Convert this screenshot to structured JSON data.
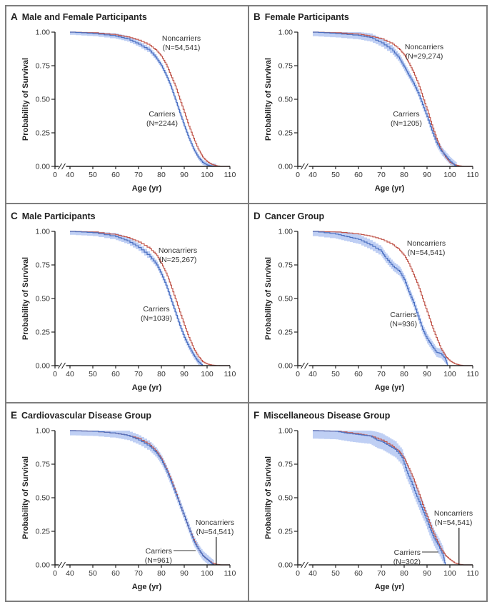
{
  "figure": {
    "colors": {
      "carriers_line": "#4a6fc0",
      "carriers_band": "#a9bff0",
      "noncarriers_line": "#c0554a",
      "axis": "#222222",
      "border": "#7d7d7d"
    }
  },
  "chart_data": [
    {
      "type": "line",
      "panel": "A",
      "title": "Male and Female Participants",
      "xlabel": "Age (yr)",
      "ylabel": "Probability of Survival",
      "xticks": [
        "0",
        "40",
        "50",
        "60",
        "70",
        "80",
        "90",
        "100",
        "110"
      ],
      "yticks": [
        "0.00",
        "0.25",
        "0.50",
        "0.75",
        "1.00"
      ],
      "xlim": [
        40,
        110
      ],
      "ylim": [
        0,
        1
      ],
      "x_axis_break": true,
      "annotations": {
        "noncarriers": [
          "Noncarriers",
          "(N=54,541)"
        ],
        "carriers": [
          "Carriers",
          "(N=2244)"
        ]
      },
      "series": [
        {
          "name": "Noncarriers",
          "x": [
            40,
            50,
            60,
            65,
            70,
            75,
            78,
            80,
            82,
            84,
            86,
            88,
            90,
            92,
            94,
            96,
            98,
            100,
            102,
            104,
            106,
            110
          ],
          "y": [
            1.0,
            0.995,
            0.98,
            0.965,
            0.94,
            0.9,
            0.86,
            0.82,
            0.76,
            0.68,
            0.6,
            0.5,
            0.4,
            0.3,
            0.21,
            0.13,
            0.07,
            0.035,
            0.015,
            0.005,
            0.0,
            0.0
          ]
        },
        {
          "name": "Carriers",
          "x": [
            40,
            50,
            60,
            65,
            70,
            75,
            78,
            80,
            82,
            84,
            86,
            88,
            90,
            92,
            94,
            96,
            98,
            100,
            102,
            104
          ],
          "y": [
            1.0,
            0.99,
            0.97,
            0.95,
            0.91,
            0.86,
            0.8,
            0.75,
            0.68,
            0.6,
            0.5,
            0.4,
            0.3,
            0.21,
            0.13,
            0.07,
            0.03,
            0.01,
            0.003,
            0.0
          ],
          "ci_halfwidth": 0.02
        }
      ]
    },
    {
      "type": "line",
      "panel": "B",
      "title": "Female Participants",
      "xlabel": "Age (yr)",
      "ylabel": "Probability of Survival",
      "xticks": [
        "0",
        "40",
        "50",
        "60",
        "70",
        "80",
        "90",
        "100",
        "110"
      ],
      "yticks": [
        "0.00",
        "0.25",
        "0.50",
        "0.75",
        "1.00"
      ],
      "xlim": [
        40,
        110
      ],
      "ylim": [
        0,
        1
      ],
      "x_axis_break": true,
      "annotations": {
        "noncarriers": [
          "Noncarriers",
          "(N=29,274)"
        ],
        "carriers": [
          "Carriers",
          "(N=1205)"
        ]
      },
      "series": [
        {
          "name": "Noncarriers",
          "x": [
            40,
            50,
            60,
            65,
            70,
            75,
            78,
            80,
            82,
            84,
            86,
            88,
            90,
            92,
            94,
            96,
            98,
            100,
            102,
            104,
            106,
            110
          ],
          "y": [
            1.0,
            0.995,
            0.985,
            0.97,
            0.95,
            0.91,
            0.87,
            0.83,
            0.77,
            0.7,
            0.62,
            0.52,
            0.42,
            0.31,
            0.21,
            0.13,
            0.07,
            0.03,
            0.012,
            0.004,
            0.0,
            0.0
          ]
        },
        {
          "name": "Carriers",
          "x": [
            40,
            50,
            60,
            65,
            70,
            75,
            78,
            80,
            82,
            84,
            86,
            88,
            90,
            92,
            94,
            96,
            98,
            100,
            102,
            103
          ],
          "y": [
            1.0,
            0.99,
            0.975,
            0.96,
            0.92,
            0.86,
            0.8,
            0.74,
            0.68,
            0.62,
            0.55,
            0.46,
            0.37,
            0.27,
            0.18,
            0.12,
            0.08,
            0.04,
            0.01,
            0.0
          ],
          "ci_halfwidth": 0.03
        }
      ]
    },
    {
      "type": "line",
      "panel": "C",
      "title": "Male Participants",
      "xlabel": "Age (yr)",
      "ylabel": "Probability of Survival",
      "xticks": [
        "0",
        "40",
        "50",
        "60",
        "70",
        "80",
        "90",
        "100",
        "110"
      ],
      "yticks": [
        "0.00",
        "0.25",
        "0.50",
        "0.75",
        "1.00"
      ],
      "xlim": [
        40,
        110
      ],
      "ylim": [
        0,
        1
      ],
      "x_axis_break": true,
      "annotations": {
        "noncarriers": [
          "Noncarriers",
          "(N=25,267)"
        ],
        "carriers": [
          "Carriers",
          "(N=1039)"
        ]
      },
      "series": [
        {
          "name": "Noncarriers",
          "x": [
            40,
            50,
            60,
            65,
            70,
            75,
            78,
            80,
            82,
            84,
            86,
            88,
            90,
            92,
            94,
            96,
            98,
            100,
            102,
            104,
            106,
            110
          ],
          "y": [
            1.0,
            0.995,
            0.975,
            0.955,
            0.92,
            0.87,
            0.82,
            0.76,
            0.69,
            0.6,
            0.5,
            0.4,
            0.3,
            0.21,
            0.13,
            0.07,
            0.03,
            0.012,
            0.004,
            0.001,
            0.0,
            0.0
          ]
        },
        {
          "name": "Carriers",
          "x": [
            40,
            50,
            60,
            65,
            70,
            75,
            78,
            80,
            82,
            84,
            86,
            88,
            90,
            92,
            94,
            96,
            98
          ],
          "y": [
            1.0,
            0.99,
            0.96,
            0.93,
            0.88,
            0.81,
            0.75,
            0.68,
            0.6,
            0.5,
            0.4,
            0.3,
            0.21,
            0.14,
            0.08,
            0.03,
            0.0
          ],
          "ci_halfwidth": 0.025
        }
      ]
    },
    {
      "type": "line",
      "panel": "D",
      "title": "Cancer Group",
      "xlabel": "Age (yr)",
      "ylabel": "Probability of Survival",
      "xticks": [
        "0",
        "40",
        "50",
        "60",
        "70",
        "80",
        "90",
        "100",
        "110"
      ],
      "yticks": [
        "0.00",
        "0.25",
        "0.50",
        "0.75",
        "1.00"
      ],
      "xlim": [
        40,
        110
      ],
      "ylim": [
        0,
        1
      ],
      "x_axis_break": true,
      "annotations": {
        "noncarriers": [
          "Noncarriers",
          "(N=54,541)"
        ],
        "carriers": [
          "Carriers",
          "(N=936)"
        ]
      },
      "series": [
        {
          "name": "Noncarriers",
          "x": [
            40,
            50,
            60,
            65,
            70,
            75,
            78,
            80,
            82,
            84,
            86,
            88,
            90,
            92,
            94,
            96,
            98,
            100,
            102,
            104,
            106,
            110
          ],
          "y": [
            1.0,
            0.995,
            0.98,
            0.965,
            0.94,
            0.9,
            0.86,
            0.82,
            0.76,
            0.68,
            0.6,
            0.5,
            0.4,
            0.3,
            0.21,
            0.13,
            0.07,
            0.035,
            0.015,
            0.005,
            0.0,
            0.0
          ]
        },
        {
          "name": "Carriers",
          "x": [
            40,
            50,
            55,
            60,
            65,
            70,
            72,
            75,
            78,
            80,
            82,
            84,
            86,
            88,
            90,
            92,
            94,
            96,
            98,
            99
          ],
          "y": [
            1.0,
            0.98,
            0.96,
            0.94,
            0.9,
            0.85,
            0.8,
            0.74,
            0.7,
            0.64,
            0.55,
            0.47,
            0.37,
            0.27,
            0.2,
            0.15,
            0.1,
            0.09,
            0.05,
            0.0
          ],
          "ci_halfwidth": 0.035
        }
      ]
    },
    {
      "type": "line",
      "panel": "E",
      "title": "Cardiovascular Disease Group",
      "xlabel": "Age (yr)",
      "ylabel": "Probability of Survival",
      "xticks": [
        "0",
        "40",
        "50",
        "60",
        "70",
        "80",
        "90",
        "100",
        "110"
      ],
      "yticks": [
        "0.00",
        "0.25",
        "0.50",
        "0.75",
        "1.00"
      ],
      "xlim": [
        40,
        110
      ],
      "ylim": [
        0,
        1
      ],
      "x_axis_break": true,
      "annotations": {
        "noncarriers": [
          "Noncarriers",
          "(N=54,541)"
        ],
        "carriers": [
          "Carriers",
          "(N=961)"
        ]
      },
      "series": [
        {
          "name": "Noncarriers",
          "x": [
            40,
            50,
            60,
            65,
            70,
            75,
            78,
            80,
            82,
            84,
            86,
            88,
            90,
            92,
            94,
            96,
            98,
            100,
            102,
            104,
            106,
            110
          ],
          "y": [
            1.0,
            0.995,
            0.98,
            0.965,
            0.94,
            0.89,
            0.84,
            0.79,
            0.72,
            0.64,
            0.55,
            0.45,
            0.36,
            0.27,
            0.19,
            0.12,
            0.07,
            0.04,
            0.015,
            0.004,
            0.0,
            0.0
          ]
        },
        {
          "name": "Carriers",
          "x": [
            40,
            50,
            60,
            65,
            70,
            75,
            78,
            80,
            82,
            84,
            86,
            88,
            90,
            92,
            94,
            96,
            98,
            100,
            102,
            103
          ],
          "y": [
            1.0,
            0.995,
            0.98,
            0.965,
            0.93,
            0.88,
            0.83,
            0.78,
            0.71,
            0.63,
            0.54,
            0.45,
            0.36,
            0.27,
            0.18,
            0.12,
            0.07,
            0.04,
            0.01,
            0.0
          ],
          "ci_halfwidth": 0.035
        }
      ]
    },
    {
      "type": "line",
      "panel": "F",
      "title": "Miscellaneous Disease Group",
      "xlabel": "Age (yr)",
      "ylabel": "Probability of Survival",
      "xticks": [
        "0",
        "40",
        "50",
        "60",
        "70",
        "80",
        "90",
        "100",
        "110"
      ],
      "yticks": [
        "0.00",
        "0.25",
        "0.50",
        "0.75",
        "1.00"
      ],
      "xlim": [
        40,
        110
      ],
      "ylim": [
        0,
        1
      ],
      "x_axis_break": true,
      "annotations": {
        "noncarriers": [
          "Noncarriers",
          "(N=54,541)"
        ],
        "carriers": [
          "Carriers",
          "(N=302)"
        ]
      },
      "series": [
        {
          "name": "Noncarriers",
          "x": [
            40,
            50,
            60,
            65,
            70,
            75,
            78,
            80,
            82,
            84,
            86,
            88,
            90,
            92,
            94,
            96,
            98,
            100,
            102,
            104,
            106,
            110
          ],
          "y": [
            1.0,
            0.995,
            0.975,
            0.96,
            0.93,
            0.88,
            0.84,
            0.79,
            0.72,
            0.64,
            0.55,
            0.45,
            0.36,
            0.27,
            0.19,
            0.12,
            0.07,
            0.04,
            0.015,
            0.004,
            0.0,
            0.0
          ]
        },
        {
          "name": "Carriers",
          "x": [
            40,
            50,
            55,
            60,
            65,
            68,
            70,
            73,
            76,
            79,
            81,
            83,
            85,
            87,
            89,
            91,
            93,
            95,
            97,
            98
          ],
          "y": [
            1.0,
            0.995,
            0.98,
            0.97,
            0.96,
            0.93,
            0.92,
            0.89,
            0.86,
            0.8,
            0.7,
            0.62,
            0.53,
            0.45,
            0.37,
            0.28,
            0.2,
            0.14,
            0.07,
            0.0
          ],
          "ci_halfwidth": 0.06
        }
      ]
    }
  ]
}
